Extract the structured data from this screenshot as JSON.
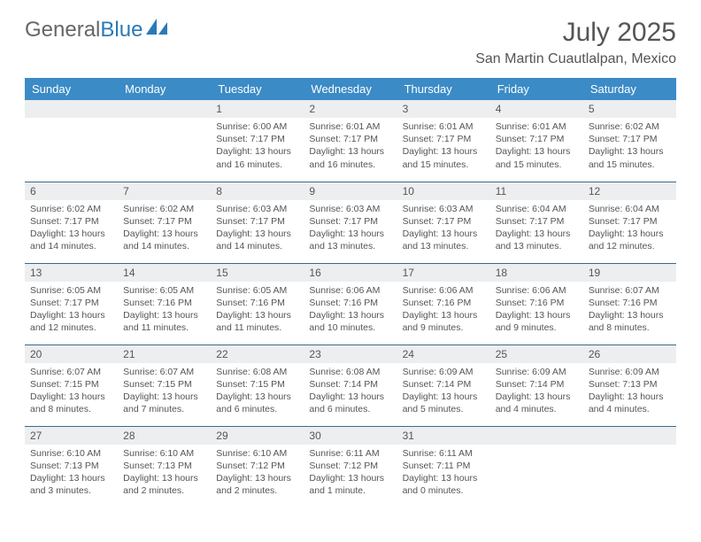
{
  "logo": {
    "text1": "General",
    "text2": "Blue"
  },
  "title": "July 2025",
  "location": "San Martin Cuautlalpan, Mexico",
  "colors": {
    "header_bg": "#3b8bc6",
    "header_text": "#ffffff",
    "daynum_bg": "#eceeef",
    "border": "#3b6a8a",
    "text": "#555555",
    "logo_blue": "#2a7ab8"
  },
  "daynames": [
    "Sunday",
    "Monday",
    "Tuesday",
    "Wednesday",
    "Thursday",
    "Friday",
    "Saturday"
  ],
  "weeks": [
    [
      null,
      null,
      {
        "n": "1",
        "sr": "Sunrise: 6:00 AM",
        "ss": "Sunset: 7:17 PM",
        "d1": "Daylight: 13 hours",
        "d2": "and 16 minutes."
      },
      {
        "n": "2",
        "sr": "Sunrise: 6:01 AM",
        "ss": "Sunset: 7:17 PM",
        "d1": "Daylight: 13 hours",
        "d2": "and 16 minutes."
      },
      {
        "n": "3",
        "sr": "Sunrise: 6:01 AM",
        "ss": "Sunset: 7:17 PM",
        "d1": "Daylight: 13 hours",
        "d2": "and 15 minutes."
      },
      {
        "n": "4",
        "sr": "Sunrise: 6:01 AM",
        "ss": "Sunset: 7:17 PM",
        "d1": "Daylight: 13 hours",
        "d2": "and 15 minutes."
      },
      {
        "n": "5",
        "sr": "Sunrise: 6:02 AM",
        "ss": "Sunset: 7:17 PM",
        "d1": "Daylight: 13 hours",
        "d2": "and 15 minutes."
      }
    ],
    [
      {
        "n": "6",
        "sr": "Sunrise: 6:02 AM",
        "ss": "Sunset: 7:17 PM",
        "d1": "Daylight: 13 hours",
        "d2": "and 14 minutes."
      },
      {
        "n": "7",
        "sr": "Sunrise: 6:02 AM",
        "ss": "Sunset: 7:17 PM",
        "d1": "Daylight: 13 hours",
        "d2": "and 14 minutes."
      },
      {
        "n": "8",
        "sr": "Sunrise: 6:03 AM",
        "ss": "Sunset: 7:17 PM",
        "d1": "Daylight: 13 hours",
        "d2": "and 14 minutes."
      },
      {
        "n": "9",
        "sr": "Sunrise: 6:03 AM",
        "ss": "Sunset: 7:17 PM",
        "d1": "Daylight: 13 hours",
        "d2": "and 13 minutes."
      },
      {
        "n": "10",
        "sr": "Sunrise: 6:03 AM",
        "ss": "Sunset: 7:17 PM",
        "d1": "Daylight: 13 hours",
        "d2": "and 13 minutes."
      },
      {
        "n": "11",
        "sr": "Sunrise: 6:04 AM",
        "ss": "Sunset: 7:17 PM",
        "d1": "Daylight: 13 hours",
        "d2": "and 13 minutes."
      },
      {
        "n": "12",
        "sr": "Sunrise: 6:04 AM",
        "ss": "Sunset: 7:17 PM",
        "d1": "Daylight: 13 hours",
        "d2": "and 12 minutes."
      }
    ],
    [
      {
        "n": "13",
        "sr": "Sunrise: 6:05 AM",
        "ss": "Sunset: 7:17 PM",
        "d1": "Daylight: 13 hours",
        "d2": "and 12 minutes."
      },
      {
        "n": "14",
        "sr": "Sunrise: 6:05 AM",
        "ss": "Sunset: 7:16 PM",
        "d1": "Daylight: 13 hours",
        "d2": "and 11 minutes."
      },
      {
        "n": "15",
        "sr": "Sunrise: 6:05 AM",
        "ss": "Sunset: 7:16 PM",
        "d1": "Daylight: 13 hours",
        "d2": "and 11 minutes."
      },
      {
        "n": "16",
        "sr": "Sunrise: 6:06 AM",
        "ss": "Sunset: 7:16 PM",
        "d1": "Daylight: 13 hours",
        "d2": "and 10 minutes."
      },
      {
        "n": "17",
        "sr": "Sunrise: 6:06 AM",
        "ss": "Sunset: 7:16 PM",
        "d1": "Daylight: 13 hours",
        "d2": "and 9 minutes."
      },
      {
        "n": "18",
        "sr": "Sunrise: 6:06 AM",
        "ss": "Sunset: 7:16 PM",
        "d1": "Daylight: 13 hours",
        "d2": "and 9 minutes."
      },
      {
        "n": "19",
        "sr": "Sunrise: 6:07 AM",
        "ss": "Sunset: 7:16 PM",
        "d1": "Daylight: 13 hours",
        "d2": "and 8 minutes."
      }
    ],
    [
      {
        "n": "20",
        "sr": "Sunrise: 6:07 AM",
        "ss": "Sunset: 7:15 PM",
        "d1": "Daylight: 13 hours",
        "d2": "and 8 minutes."
      },
      {
        "n": "21",
        "sr": "Sunrise: 6:07 AM",
        "ss": "Sunset: 7:15 PM",
        "d1": "Daylight: 13 hours",
        "d2": "and 7 minutes."
      },
      {
        "n": "22",
        "sr": "Sunrise: 6:08 AM",
        "ss": "Sunset: 7:15 PM",
        "d1": "Daylight: 13 hours",
        "d2": "and 6 minutes."
      },
      {
        "n": "23",
        "sr": "Sunrise: 6:08 AM",
        "ss": "Sunset: 7:14 PM",
        "d1": "Daylight: 13 hours",
        "d2": "and 6 minutes."
      },
      {
        "n": "24",
        "sr": "Sunrise: 6:09 AM",
        "ss": "Sunset: 7:14 PM",
        "d1": "Daylight: 13 hours",
        "d2": "and 5 minutes."
      },
      {
        "n": "25",
        "sr": "Sunrise: 6:09 AM",
        "ss": "Sunset: 7:14 PM",
        "d1": "Daylight: 13 hours",
        "d2": "and 4 minutes."
      },
      {
        "n": "26",
        "sr": "Sunrise: 6:09 AM",
        "ss": "Sunset: 7:13 PM",
        "d1": "Daylight: 13 hours",
        "d2": "and 4 minutes."
      }
    ],
    [
      {
        "n": "27",
        "sr": "Sunrise: 6:10 AM",
        "ss": "Sunset: 7:13 PM",
        "d1": "Daylight: 13 hours",
        "d2": "and 3 minutes."
      },
      {
        "n": "28",
        "sr": "Sunrise: 6:10 AM",
        "ss": "Sunset: 7:13 PM",
        "d1": "Daylight: 13 hours",
        "d2": "and 2 minutes."
      },
      {
        "n": "29",
        "sr": "Sunrise: 6:10 AM",
        "ss": "Sunset: 7:12 PM",
        "d1": "Daylight: 13 hours",
        "d2": "and 2 minutes."
      },
      {
        "n": "30",
        "sr": "Sunrise: 6:11 AM",
        "ss": "Sunset: 7:12 PM",
        "d1": "Daylight: 13 hours",
        "d2": "and 1 minute."
      },
      {
        "n": "31",
        "sr": "Sunrise: 6:11 AM",
        "ss": "Sunset: 7:11 PM",
        "d1": "Daylight: 13 hours",
        "d2": "and 0 minutes."
      },
      null,
      null
    ]
  ]
}
